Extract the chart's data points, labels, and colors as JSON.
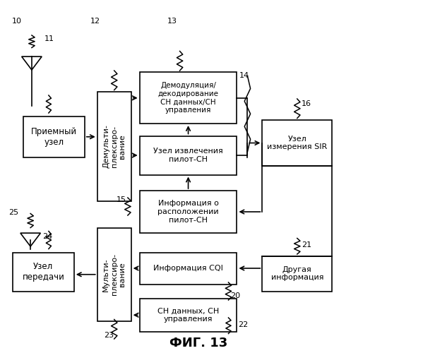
{
  "title": "ФИГ. 13",
  "bg": "#ffffff",
  "boxes": {
    "priemny": [
      0.055,
      0.555,
      0.145,
      0.115,
      "Приемный\nузел",
      8.5,
      false
    ],
    "demux": [
      0.23,
      0.43,
      0.08,
      0.31,
      "Демульти-\nплексиро-\nвание",
      8.0,
      true
    ],
    "demod": [
      0.33,
      0.65,
      0.23,
      0.145,
      "Демодуляция/\nдекодирование\nСН данных/СН\nуправления",
      7.5,
      false
    ],
    "pilot_ext": [
      0.33,
      0.505,
      0.23,
      0.11,
      "Узел извлечения\nпилот-СН",
      8.0,
      false
    ],
    "pilot_info": [
      0.33,
      0.34,
      0.23,
      0.12,
      "Информация о\nрасположении\nпилот-СН",
      8.0,
      false
    ],
    "sir": [
      0.62,
      0.53,
      0.165,
      0.13,
      "Узел\nизмерения SIR",
      8.0,
      false
    ],
    "cqi": [
      0.33,
      0.195,
      0.23,
      0.09,
      "Информация CQI",
      8.0,
      false
    ],
    "chdata": [
      0.33,
      0.06,
      0.23,
      0.095,
      "СН данных, СН\nуправления",
      8.0,
      false
    ],
    "mux": [
      0.23,
      0.09,
      0.08,
      0.265,
      "Мульти-\nплексиро-\nвание",
      8.0,
      true
    ],
    "uzelperd": [
      0.03,
      0.175,
      0.145,
      0.11,
      "Узел\nпередачи",
      8.5,
      false
    ],
    "drugaya": [
      0.62,
      0.175,
      0.165,
      0.1,
      "Другая\nинформация",
      8.0,
      false
    ]
  }
}
